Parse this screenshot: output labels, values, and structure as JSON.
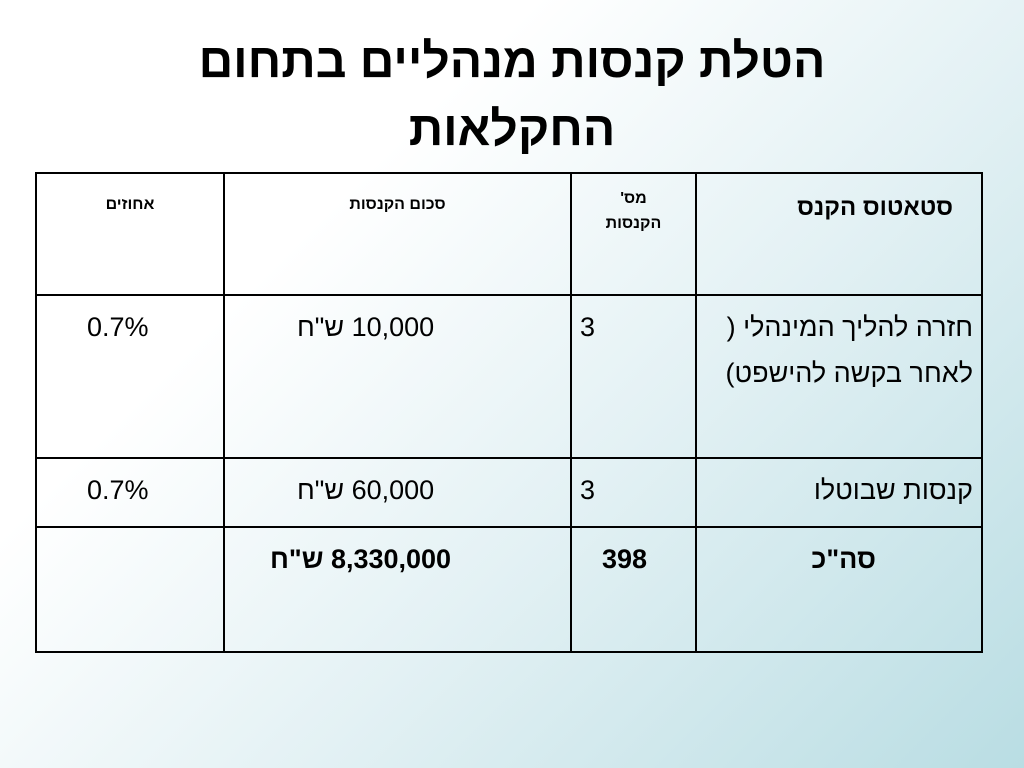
{
  "title": {
    "line1": "הטלת קנסות מנהליים בתחום",
    "line2": "החקלאות"
  },
  "table": {
    "headers": {
      "status": "סטאטוס הקנס",
      "count_line1": "מס'",
      "count_line2": "הקנסות",
      "sum": "סכום הקנסות",
      "percent": "אחוזים"
    },
    "rows": [
      {
        "status": "חזרה להליך המינהלי ( לאחר בקשה להישפט)",
        "count": "3",
        "sum": "10,000 ש\"ח",
        "percent": "0.7%"
      },
      {
        "status": "קנסות שבוטלו",
        "count": "3",
        "sum": "60,000 ש\"ח",
        "percent": "0.7%"
      }
    ],
    "total": {
      "label": "סה\"כ",
      "count": "398",
      "sum": "8,330,000 ש\"ח",
      "percent": ""
    }
  }
}
